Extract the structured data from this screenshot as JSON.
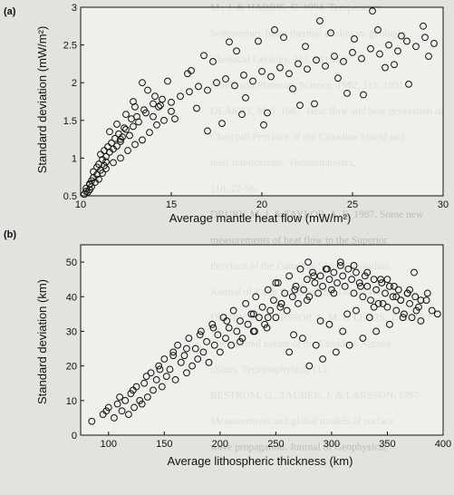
{
  "background_text_lines": [
    "M., J. & HARRIS, C. 1994. Temperature",
    "Sedimentary basin thermal evolution: geologic",
    "Chemical Geology, 111, 181-200.",
    "Lithos and Planetary Science, 1992, 111, 1991.",
    "DEAKEY, M. J. 1987. Heat flow and heat generation in",
    "Churchill Province of the Canadian Shield and",
    "their implications. Tectonophysics,",
    "118, 22-98.",
    "DRURY, M. J. & TAYLOR, A. E. 1987. Some new",
    "measurements of heat flow in the Superior",
    "Province of the Canadian Shield. Canadian",
    "Journal of Earth Sciences, 24, 1486-1489.",
    "DRURY, M. J., JESSOP, A. M. & LEWIS, T. J. 1987.",
    "The thermal nature of the Canadian Appala-",
    "chians. Tectonophysics, 113,",
    "BESTROM, G., TAUBER, J. & LARSSON, 1997.",
    "Measurements and global models of surface",
    "wave propagation. Journal of Geophysical"
  ],
  "chart_data": [
    {
      "panel": "(a)",
      "type": "scatter",
      "title": "",
      "xlabel": "Average mantle heat flow (mW/m²)",
      "ylabel": "Standard deviation (mW/m²)",
      "xlim": [
        10,
        30
      ],
      "ylim": [
        0.5,
        3
      ],
      "xticks": [
        10,
        15,
        20,
        25,
        30
      ],
      "yticks": [
        0.5,
        1,
        1.5,
        2,
        2.5,
        3
      ],
      "x": [
        10.2,
        10.3,
        10.3,
        10.4,
        10.5,
        10.5,
        10.6,
        10.6,
        10.7,
        10.8,
        10.9,
        11.0,
        11.1,
        11.2,
        11.3,
        11.4,
        10.5,
        10.7,
        10.9,
        11.0,
        11.2,
        11.4,
        11.6,
        11.8,
        12.0,
        12.2,
        11.1,
        11.3,
        11.5,
        11.7,
        11.9,
        12.1,
        12.3,
        12.5,
        12.7,
        12.9,
        11.6,
        12.0,
        12.4,
        12.8,
        13.2,
        13.6,
        14.0,
        14.4,
        11.4,
        11.8,
        12.2,
        12.6,
        13.0,
        13.4,
        13.8,
        14.2,
        14.6,
        15.0,
        12.5,
        13.0,
        13.5,
        14.0,
        14.5,
        15.0,
        15.5,
        16.0,
        16.5,
        17.0,
        17.5,
        18.0,
        18.5,
        19.0,
        19.5,
        20.0,
        20.5,
        21.0,
        21.5,
        22.0,
        22.5,
        23.0,
        23.5,
        24.0,
        24.5,
        25.0,
        25.5,
        26.0,
        26.5,
        27.0,
        27.5,
        28.0,
        28.5,
        29.0,
        29.5,
        15.2,
        16.4,
        17.8,
        19.1,
        20.3,
        21.7,
        22.9,
        24.2,
        25.6,
        26.8,
        28.1,
        29.2,
        14.1,
        15.9,
        17.3,
        18.6,
        19.8,
        21.2,
        22.4,
        23.8,
        25.1,
        26.4,
        27.7,
        28.9,
        13.4,
        16.8,
        18.2,
        20.7,
        23.2,
        26.1,
        12.9,
        13.7,
        14.8,
        16.1,
        17.0,
        18.9,
        20.1,
        22.1,
        24.7,
        27.3,
        12.2,
        13.1,
        14.3
      ],
      "y": [
        0.52,
        0.56,
        0.6,
        0.55,
        0.65,
        0.58,
        0.7,
        0.62,
        0.74,
        0.68,
        0.78,
        0.72,
        0.84,
        0.8,
        0.9,
        0.95,
        0.66,
        0.82,
        0.88,
        0.92,
        0.98,
        1.02,
        1.08,
        1.12,
        1.16,
        1.22,
        1.05,
        1.1,
        1.15,
        1.2,
        1.26,
        1.32,
        1.28,
        1.38,
        1.3,
        1.42,
        1.35,
        1.45,
        1.4,
        1.52,
        1.48,
        1.6,
        1.55,
        1.7,
        0.86,
        0.94,
        1.0,
        1.1,
        1.18,
        1.24,
        1.34,
        1.44,
        1.5,
        1.62,
        1.58,
        1.68,
        1.64,
        1.72,
        1.78,
        1.74,
        1.82,
        1.88,
        1.95,
        1.9,
        2.0,
        2.05,
        1.96,
        2.1,
        2.02,
        2.15,
        2.08,
        2.2,
        2.12,
        2.25,
        2.18,
        2.3,
        2.22,
        2.35,
        2.28,
        2.4,
        2.32,
        2.45,
        2.38,
        2.5,
        2.42,
        2.55,
        2.48,
        2.6,
        2.52,
        1.52,
        1.66,
        1.46,
        1.8,
        1.6,
        1.92,
        1.72,
        2.06,
        1.84,
        2.2,
        1.98,
        2.35,
        1.82,
        2.12,
        2.28,
        2.42,
        2.55,
        2.6,
        2.48,
        2.66,
        2.58,
        2.7,
        2.62,
        2.75,
        2.0,
        2.36,
        2.54,
        2.7,
        2.82,
        2.95,
        1.75,
        1.9,
        2.02,
        2.16,
        1.36,
        1.58,
        1.44,
        1.7,
        1.86,
        2.24,
        1.25,
        1.55,
        1.68
      ]
    },
    {
      "panel": "(b)",
      "type": "scatter",
      "title": "",
      "xlabel": "Average lithospheric thickness (km)",
      "ylabel": "Standard deviation (km)",
      "xlim": [
        75,
        400
      ],
      "ylim": [
        0,
        55
      ],
      "xticks": [
        100,
        150,
        200,
        250,
        300,
        350,
        400
      ],
      "yticks": [
        0,
        10,
        20,
        30,
        40,
        50
      ],
      "x": [
        85,
        95,
        100,
        105,
        108,
        112,
        115,
        118,
        120,
        123,
        125,
        128,
        130,
        132,
        135,
        138,
        140,
        143,
        145,
        148,
        150,
        152,
        155,
        158,
        160,
        162,
        165,
        168,
        170,
        172,
        175,
        178,
        180,
        183,
        185,
        188,
        190,
        193,
        195,
        198,
        200,
        203,
        205,
        208,
        210,
        212,
        215,
        218,
        220,
        223,
        225,
        228,
        230,
        232,
        235,
        238,
        240,
        243,
        245,
        248,
        250,
        252,
        255,
        258,
        260,
        262,
        265,
        268,
        270,
        272,
        275,
        278,
        280,
        283,
        285,
        288,
        290,
        292,
        295,
        298,
        300,
        302,
        305,
        308,
        310,
        312,
        315,
        318,
        320,
        322,
        325,
        328,
        330,
        332,
        335,
        338,
        340,
        342,
        345,
        348,
        350,
        352,
        355,
        358,
        360,
        362,
        365,
        368,
        370,
        372,
        375,
        378,
        380,
        385,
        390,
        395,
        98,
        110,
        122,
        134,
        146,
        158,
        170,
        182,
        194,
        206,
        218,
        230,
        242,
        254,
        266,
        278,
        290,
        302,
        314,
        326,
        338,
        350,
        362,
        374,
        386,
        262,
        274,
        286,
        298,
        310,
        322,
        334,
        346,
        358,
        370,
        280,
        292,
        304,
        316,
        328,
        340,
        352,
        364,
        376,
        250,
        284,
        296,
        308,
        320,
        332,
        344,
        356,
        368,
        380,
        231,
        243,
        255,
        267,
        279
      ],
      "y": [
        4,
        6,
        8,
        5,
        9,
        7,
        10,
        6,
        12,
        8,
        14,
        10,
        9,
        15,
        11,
        18,
        13,
        16,
        20,
        14,
        22,
        17,
        19,
        24,
        16,
        26,
        21,
        23,
        18,
        28,
        20,
        25,
        22,
        30,
        24,
        27,
        21,
        32,
        26,
        29,
        24,
        34,
        28,
        31,
        26,
        36,
        30,
        33,
        28,
        38,
        32,
        35,
        30,
        40,
        34,
        37,
        32,
        42,
        36,
        39,
        34,
        44,
        38,
        41,
        36,
        46,
        40,
        43,
        38,
        48,
        42,
        45,
        40,
        47,
        44,
        41,
        46,
        43,
        48,
        45,
        42,
        47,
        44,
        49,
        46,
        43,
        48,
        45,
        41,
        47,
        44,
        40,
        46,
        43,
        39,
        45,
        42,
        38,
        44,
        41,
        37,
        43,
        40,
        36,
        42,
        39,
        35,
        41,
        38,
        34,
        40,
        37,
        33,
        39,
        36,
        35,
        7,
        11,
        13,
        17,
        19,
        23,
        25,
        29,
        31,
        33,
        27,
        35,
        31,
        37,
        29,
        39,
        33,
        41,
        35,
        43,
        37,
        45,
        39,
        47,
        41,
        24,
        28,
        26,
        32,
        30,
        36,
        34,
        38,
        40,
        42,
        20,
        22,
        24,
        26,
        28,
        30,
        32,
        34,
        36,
        44,
        46,
        48,
        50,
        49,
        47,
        45,
        43,
        41,
        39,
        30,
        34,
        38,
        42,
        50
      ]
    }
  ]
}
